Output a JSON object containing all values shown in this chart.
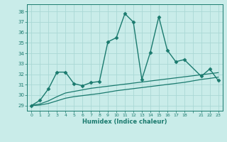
{
  "xlabel": "Humidex (Indice chaleur)",
  "bg_color": "#c9ece9",
  "grid_color": "#aad8d5",
  "line_color": "#1a7a6e",
  "ylim": [
    28.5,
    38.7
  ],
  "yticks": [
    29,
    30,
    31,
    32,
    33,
    34,
    35,
    36,
    37,
    38
  ],
  "xtick_labels": [
    "0",
    "1",
    "2",
    "3",
    "4",
    "5",
    "6",
    "7",
    "8",
    "9",
    "10",
    "11",
    "12",
    "13",
    "14",
    "15",
    "16",
    "17",
    "18",
    "",
    "21",
    "22",
    "23"
  ],
  "series": [
    {
      "x": [
        0,
        1,
        2,
        3,
        4,
        5,
        6,
        7,
        8,
        9,
        10,
        11,
        12,
        13,
        14,
        15,
        16,
        17,
        18,
        20,
        21,
        22
      ],
      "y": [
        29,
        29.5,
        30.6,
        32.2,
        32.2,
        31.1,
        30.9,
        31.2,
        31.3,
        35.1,
        35.5,
        37.8,
        37.0,
        31.5,
        34.1,
        37.5,
        34.3,
        33.2,
        33.4,
        31.8,
        32.5,
        31.4
      ],
      "marker": "D",
      "markersize": 2.5,
      "linewidth": 1.0
    },
    {
      "x": [
        0,
        1,
        2,
        3,
        4,
        5,
        6,
        7,
        8,
        9,
        10,
        11,
        12,
        13,
        14,
        15,
        16,
        17,
        18,
        20,
        21,
        22
      ],
      "y": [
        29,
        29.15,
        29.45,
        29.85,
        30.2,
        30.35,
        30.5,
        30.65,
        30.75,
        30.85,
        30.95,
        31.05,
        31.15,
        31.25,
        31.35,
        31.45,
        31.55,
        31.65,
        31.75,
        31.95,
        32.05,
        32.15
      ],
      "marker": null,
      "linewidth": 0.9
    },
    {
      "x": [
        0,
        1,
        2,
        3,
        4,
        5,
        6,
        7,
        8,
        9,
        10,
        11,
        12,
        13,
        14,
        15,
        16,
        17,
        18,
        20,
        21,
        22
      ],
      "y": [
        29,
        29.05,
        29.2,
        29.45,
        29.7,
        29.85,
        29.95,
        30.05,
        30.15,
        30.28,
        30.42,
        30.52,
        30.62,
        30.72,
        30.82,
        30.92,
        31.02,
        31.12,
        31.22,
        31.5,
        31.6,
        31.72
      ],
      "marker": null,
      "linewidth": 0.9
    }
  ]
}
